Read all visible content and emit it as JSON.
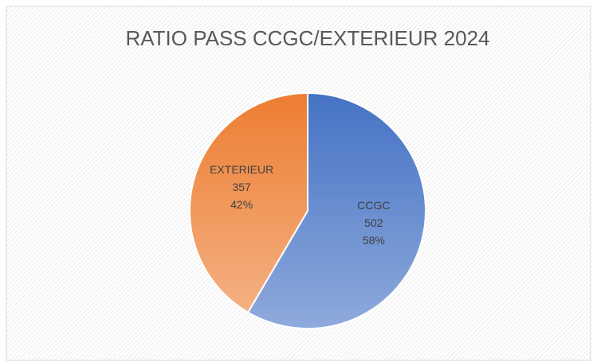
{
  "chart_data": {
    "type": "pie",
    "title": "RATIO PASS CCGC/EXTERIEUR 2024",
    "categories": [
      "CCGC",
      "EXTERIEUR"
    ],
    "values": [
      502,
      357
    ],
    "percent_labels": [
      "58%",
      "42%"
    ],
    "colors": [
      "#4472c4",
      "#ed7d31"
    ]
  }
}
